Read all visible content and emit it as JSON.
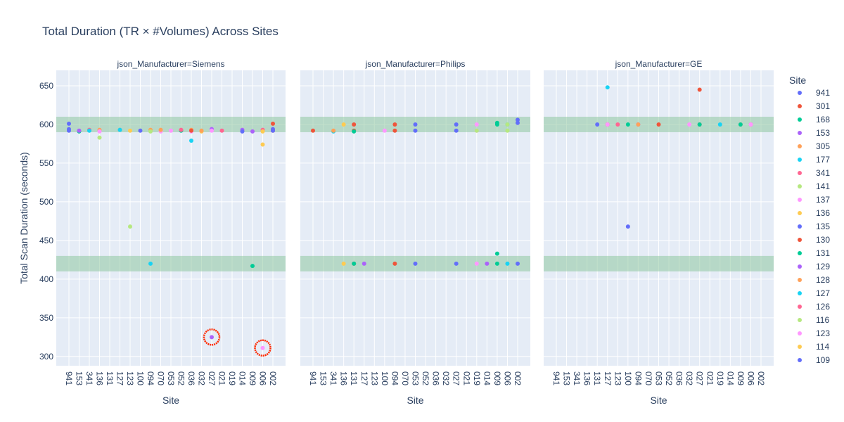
{
  "chart_data": {
    "type": "scatter",
    "title": "Total Duration (TR × #Volumes) Across Sites",
    "xlabel": "Site",
    "ylabel": "Total Scan Duration (seconds)",
    "ylim": [
      288,
      670
    ],
    "yticks": [
      300,
      350,
      400,
      450,
      500,
      550,
      600,
      650
    ],
    "grid": true,
    "legend_title": "Site",
    "legend_position": "right",
    "categories": [
      "941",
      "153",
      "341",
      "136",
      "131",
      "127",
      "123",
      "100",
      "094",
      "070",
      "053",
      "052",
      "036",
      "032",
      "027",
      "021",
      "019",
      "014",
      "009",
      "006",
      "002"
    ],
    "bands": [
      [
        590,
        610
      ],
      [
        410,
        430
      ]
    ],
    "highlight_circles": [
      {
        "panel": 0,
        "site": "027",
        "y": 325
      },
      {
        "panel": 0,
        "site": "006",
        "y": 311
      }
    ],
    "facets": [
      {
        "label": "json_Manufacturer=Siemens",
        "points": [
          {
            "site": "941",
            "y": 601,
            "c": "941"
          },
          {
            "site": "941",
            "y": 594,
            "c": "941"
          },
          {
            "site": "941",
            "y": 592,
            "c": "941"
          },
          {
            "site": "153",
            "y": 591,
            "c": "168"
          },
          {
            "site": "153",
            "y": 592,
            "c": "153"
          },
          {
            "site": "341",
            "y": 593,
            "c": "341"
          },
          {
            "site": "341",
            "y": 592,
            "c": "177"
          },
          {
            "site": "136",
            "y": 593,
            "c": "305"
          },
          {
            "site": "136",
            "y": 583,
            "c": "141"
          },
          {
            "site": "136",
            "y": 591,
            "c": "123"
          },
          {
            "site": "127",
            "y": 593,
            "c": "305"
          },
          {
            "site": "127",
            "y": 593,
            "c": "177"
          },
          {
            "site": "123",
            "y": 468,
            "c": "141"
          },
          {
            "site": "123",
            "y": 592,
            "c": "136"
          },
          {
            "site": "100",
            "y": 592,
            "c": "135"
          },
          {
            "site": "094",
            "y": 593,
            "c": "305"
          },
          {
            "site": "094",
            "y": 591,
            "c": "141"
          },
          {
            "site": "094",
            "y": 420,
            "c": "177"
          },
          {
            "site": "070",
            "y": 591,
            "c": "123"
          },
          {
            "site": "070",
            "y": 593,
            "c": "305"
          },
          {
            "site": "053",
            "y": 592,
            "c": "123"
          },
          {
            "site": "052",
            "y": 592,
            "c": "168"
          },
          {
            "site": "052",
            "y": 593,
            "c": "341"
          },
          {
            "site": "036",
            "y": 593,
            "c": "305"
          },
          {
            "site": "036",
            "y": 591,
            "c": "123"
          },
          {
            "site": "036",
            "y": 579,
            "c": "177"
          },
          {
            "site": "036",
            "y": 592,
            "c": "130"
          },
          {
            "site": "032",
            "y": 591,
            "c": "136"
          },
          {
            "site": "032",
            "y": 592,
            "c": "305"
          },
          {
            "site": "027",
            "y": 594,
            "c": "129"
          },
          {
            "site": "027",
            "y": 592,
            "c": "123"
          },
          {
            "site": "027",
            "y": 325,
            "c": "129"
          },
          {
            "site": "021",
            "y": 592,
            "c": "126"
          },
          {
            "site": "014",
            "y": 592,
            "c": "136"
          },
          {
            "site": "014",
            "y": 593,
            "c": "153"
          },
          {
            "site": "014",
            "y": 591,
            "c": "135"
          },
          {
            "site": "009",
            "y": 591,
            "c": "153"
          },
          {
            "site": "009",
            "y": 417,
            "c": "131"
          },
          {
            "site": "006",
            "y": 593,
            "c": "126"
          },
          {
            "site": "006",
            "y": 311,
            "c": "123"
          },
          {
            "site": "006",
            "y": 591,
            "c": "114"
          },
          {
            "site": "006",
            "y": 574,
            "c": "114"
          },
          {
            "site": "002",
            "y": 601,
            "c": "301"
          },
          {
            "site": "002",
            "y": 594,
            "c": "941"
          },
          {
            "site": "002",
            "y": 592,
            "c": "130"
          },
          {
            "site": "002",
            "y": 592,
            "c": "135"
          }
        ]
      },
      {
        "label": "json_Manufacturer=Philips",
        "points": [
          {
            "site": "941",
            "y": 592,
            "c": "301"
          },
          {
            "site": "341",
            "y": 591,
            "c": "177"
          },
          {
            "site": "341",
            "y": 592,
            "c": "305"
          },
          {
            "site": "136",
            "y": 600,
            "c": "136"
          },
          {
            "site": "136",
            "y": 420,
            "c": "136"
          },
          {
            "site": "131",
            "y": 600,
            "c": "301"
          },
          {
            "site": "131",
            "y": 592,
            "c": "301"
          },
          {
            "site": "131",
            "y": 420,
            "c": "301"
          },
          {
            "site": "131",
            "y": 591,
            "c": "168"
          },
          {
            "site": "131",
            "y": 420,
            "c": "131"
          },
          {
            "site": "127",
            "y": 420,
            "c": "129"
          },
          {
            "site": "100",
            "y": 592,
            "c": "123"
          },
          {
            "site": "094",
            "y": 600,
            "c": "301"
          },
          {
            "site": "094",
            "y": 592,
            "c": "130"
          },
          {
            "site": "094",
            "y": 420,
            "c": "130"
          },
          {
            "site": "053",
            "y": 600,
            "c": "941"
          },
          {
            "site": "053",
            "y": 592,
            "c": "941"
          },
          {
            "site": "053",
            "y": 420,
            "c": "941"
          },
          {
            "site": "027",
            "y": 600,
            "c": "109"
          },
          {
            "site": "027",
            "y": 592,
            "c": "941"
          },
          {
            "site": "027",
            "y": 420,
            "c": "109"
          },
          {
            "site": "019",
            "y": 600,
            "c": "123"
          },
          {
            "site": "019",
            "y": 592,
            "c": "123"
          },
          {
            "site": "019",
            "y": 420,
            "c": "123"
          },
          {
            "site": "019",
            "y": 592,
            "c": "141"
          },
          {
            "site": "014",
            "y": 420,
            "c": "129"
          },
          {
            "site": "009",
            "y": 600,
            "c": "168"
          },
          {
            "site": "009",
            "y": 602,
            "c": "131"
          },
          {
            "site": "009",
            "y": 433,
            "c": "131"
          },
          {
            "site": "009",
            "y": 420,
            "c": "168"
          },
          {
            "site": "006",
            "y": 600,
            "c": "177"
          },
          {
            "site": "006",
            "y": 420,
            "c": "177"
          },
          {
            "site": "006",
            "y": 600,
            "c": "116"
          },
          {
            "site": "006",
            "y": 592,
            "c": "116"
          },
          {
            "site": "002",
            "y": 606,
            "c": "941"
          },
          {
            "site": "002",
            "y": 602,
            "c": "109"
          },
          {
            "site": "002",
            "y": 420,
            "c": "109"
          }
        ]
      },
      {
        "label": "json_Manufacturer=GE",
        "points": [
          {
            "site": "131",
            "y": 600,
            "c": "941"
          },
          {
            "site": "127",
            "y": 648,
            "c": "177"
          },
          {
            "site": "127",
            "y": 600,
            "c": "305"
          },
          {
            "site": "127",
            "y": 600,
            "c": "341"
          },
          {
            "site": "127",
            "y": 600,
            "c": "123"
          },
          {
            "site": "123",
            "y": 600,
            "c": "126"
          },
          {
            "site": "100",
            "y": 468,
            "c": "135"
          },
          {
            "site": "100",
            "y": 600,
            "c": "168"
          },
          {
            "site": "094",
            "y": 600,
            "c": "129"
          },
          {
            "site": "094",
            "y": 600,
            "c": "305"
          },
          {
            "site": "053",
            "y": 600,
            "c": "130"
          },
          {
            "site": "032",
            "y": 600,
            "c": "123"
          },
          {
            "site": "027",
            "y": 645,
            "c": "301"
          },
          {
            "site": "027",
            "y": 600,
            "c": "301"
          },
          {
            "site": "027",
            "y": 600,
            "c": "131"
          },
          {
            "site": "019",
            "y": 600,
            "c": "177"
          },
          {
            "site": "009",
            "y": 600,
            "c": "305"
          },
          {
            "site": "009",
            "y": 600,
            "c": "168"
          },
          {
            "site": "006",
            "y": 600,
            "c": "126"
          },
          {
            "site": "006",
            "y": 600,
            "c": "123"
          }
        ]
      }
    ],
    "legend": [
      {
        "label": "941",
        "color": "#636efa"
      },
      {
        "label": "301",
        "color": "#EF553B"
      },
      {
        "label": "168",
        "color": "#00cc96"
      },
      {
        "label": "153",
        "color": "#ab63fa"
      },
      {
        "label": "305",
        "color": "#FFA15A"
      },
      {
        "label": "177",
        "color": "#19d3f3"
      },
      {
        "label": "341",
        "color": "#FF6692"
      },
      {
        "label": "141",
        "color": "#B6E880"
      },
      {
        "label": "137",
        "color": "#FF97FF"
      },
      {
        "label": "136",
        "color": "#FECB52"
      },
      {
        "label": "135",
        "color": "#636efa"
      },
      {
        "label": "130",
        "color": "#EF553B"
      },
      {
        "label": "131",
        "color": "#00cc96"
      },
      {
        "label": "129",
        "color": "#ab63fa"
      },
      {
        "label": "128",
        "color": "#FFA15A"
      },
      {
        "label": "127",
        "color": "#19d3f3"
      },
      {
        "label": "126",
        "color": "#FF6692"
      },
      {
        "label": "116",
        "color": "#B6E880"
      },
      {
        "label": "123",
        "color": "#FF97FF"
      },
      {
        "label": "114",
        "color": "#FECB52"
      },
      {
        "label": "109",
        "color": "#636efa"
      }
    ],
    "colors": {
      "plot_bg": "#e5ecf6",
      "grid": "#ffffff",
      "band": "#8fc8a0",
      "highlight": "#ff2a00",
      "text": "#2a3f5f"
    }
  }
}
